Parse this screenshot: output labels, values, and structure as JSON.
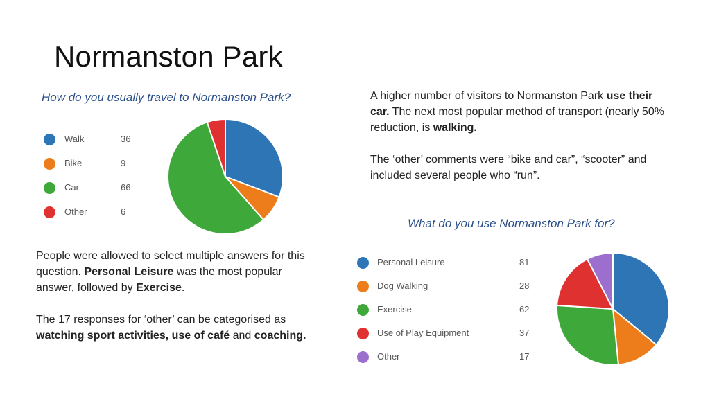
{
  "slide": {
    "title": "Normanston Park"
  },
  "chart_data": [
    {
      "type": "pie",
      "title": "How do you usually travel to Normanston Park?",
      "categories": [
        "Walk",
        "Bike",
        "Car",
        "Other"
      ],
      "values": [
        36,
        9,
        66,
        6
      ],
      "colors": [
        "#2e75b6",
        "#ed7d1a",
        "#3ea83a",
        "#e03131"
      ],
      "legend": "left"
    },
    {
      "type": "pie",
      "title": "What do you use Normanston Park for?",
      "categories": [
        "Personal Leisure",
        "Dog Walking",
        "Exercise",
        "Use of Play Equipment",
        "Other"
      ],
      "values": [
        81,
        28,
        62,
        37,
        17
      ],
      "colors": [
        "#2e75b6",
        "#ed7d1a",
        "#3ea83a",
        "#e03131",
        "#9c6fcf"
      ],
      "legend": "left"
    }
  ],
  "text_right": {
    "p1_a": "A higher number of visitors to Normanston Park ",
    "p1_b": "use their car.",
    "p1_c": "  The next most popular method of transport (nearly 50% reduction, is ",
    "p1_d": "walking.",
    "p2": "The ‘other’ comments were “bike and car”, “scooter” and included several people who “run”."
  },
  "text_left": {
    "p1_a": "People were allowed to select multiple answers for this question.  ",
    "p1_b": "Personal Leisure",
    "p1_c": " was the most popular answer, followed by ",
    "p1_d": "Exercise",
    "p1_e": ".",
    "p2_a": "The 17 responses for ‘other’ can be categorised as ",
    "p2_b": "watching sport activities, use of café",
    "p2_c": " and ",
    "p2_d": "coaching."
  }
}
